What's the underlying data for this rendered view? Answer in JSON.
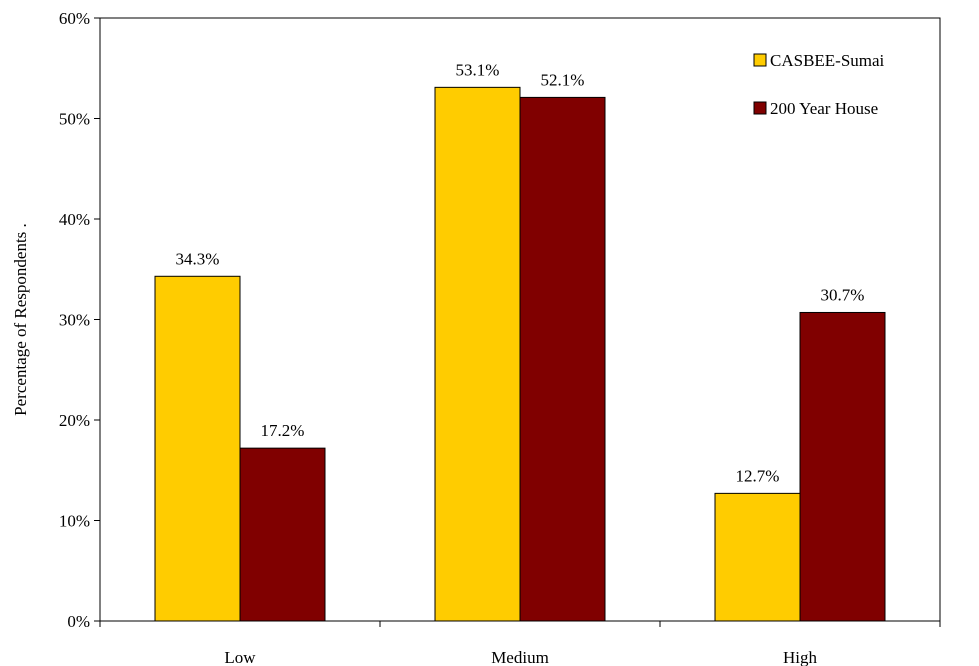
{
  "chart_data": {
    "type": "bar",
    "title": "",
    "xlabel": "",
    "ylabel": "Percentage of Respondents .",
    "ylim": [
      0,
      60
    ],
    "y_ticks": [
      0,
      10,
      20,
      30,
      40,
      50,
      60
    ],
    "y_tick_labels": [
      "0%",
      "10%",
      "20%",
      "30%",
      "40%",
      "50%",
      "60%"
    ],
    "categories": [
      "Low",
      "Medium",
      "High"
    ],
    "series": [
      {
        "name": "CASBEE-Sumai",
        "color": "#FFCC00",
        "values": [
          34.3,
          53.1,
          12.7
        ],
        "labels": [
          "34.3%",
          "53.1%",
          "12.7%"
        ]
      },
      {
        "name": "200 Year House",
        "color": "#800000",
        "values": [
          17.2,
          52.1,
          30.7
        ],
        "labels": [
          "17.2%",
          "52.1%",
          "30.7%"
        ]
      }
    ],
    "grid": false,
    "legend_position": "top-right"
  }
}
